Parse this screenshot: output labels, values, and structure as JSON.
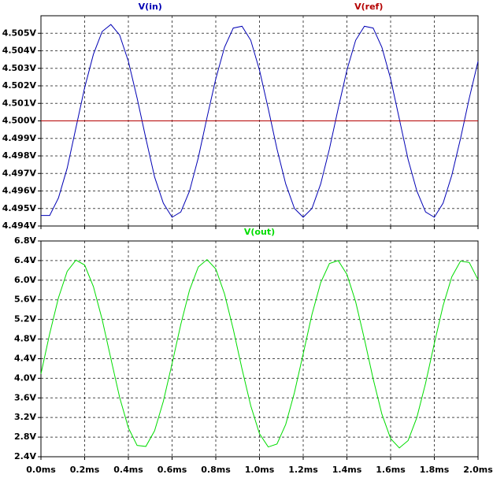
{
  "chart_data": [
    {
      "type": "line",
      "x": [
        0,
        0.04,
        0.08,
        0.12,
        0.16,
        0.2,
        0.24,
        0.28,
        0.32,
        0.36,
        0.4,
        0.44,
        0.48,
        0.52,
        0.56,
        0.6,
        0.64,
        0.68,
        0.72,
        0.76,
        0.8,
        0.84,
        0.88,
        0.92,
        0.96,
        1.0,
        1.04,
        1.08,
        1.12,
        1.16,
        1.2,
        1.24,
        1.28,
        1.32,
        1.36,
        1.4,
        1.44,
        1.48,
        1.52,
        1.56,
        1.6,
        1.64,
        1.68,
        1.72,
        1.76,
        1.8,
        1.84,
        1.88,
        1.92,
        1.96,
        2.0
      ],
      "series": [
        {
          "name": "V(in)",
          "color": "#0000b4",
          "values": [
            4.4946,
            4.4946,
            4.4956,
            4.4973,
            4.4996,
            4.5019,
            4.5038,
            4.5051,
            4.5055,
            4.5049,
            4.5034,
            4.5013,
            4.499,
            4.4968,
            4.4953,
            4.4945,
            4.4948,
            4.496,
            4.4979,
            4.5002,
            4.5024,
            4.5042,
            4.5053,
            4.5054,
            4.5046,
            4.5029,
            4.5007,
            4.4984,
            4.4964,
            4.495,
            4.4945,
            4.495,
            4.4964,
            4.4984,
            4.5007,
            4.5029,
            4.5046,
            4.5054,
            4.5053,
            4.5042,
            4.5024,
            4.5001,
            4.4978,
            4.496,
            4.4948,
            4.4945,
            4.4953,
            4.4969,
            4.499,
            4.5013,
            4.5034
          ]
        },
        {
          "name": "V(ref)",
          "color": "#b40000",
          "values": [
            4.5,
            4.5,
            4.5,
            4.5,
            4.5,
            4.5,
            4.5,
            4.5,
            4.5,
            4.5,
            4.5,
            4.5,
            4.5,
            4.5,
            4.5,
            4.5,
            4.5,
            4.5,
            4.5,
            4.5,
            4.5,
            4.5,
            4.5,
            4.5,
            4.5,
            4.5,
            4.5,
            4.5,
            4.5,
            4.5,
            4.5,
            4.5,
            4.5,
            4.5,
            4.5,
            4.5,
            4.5,
            4.5,
            4.5,
            4.5,
            4.5,
            4.5,
            4.5,
            4.5,
            4.5,
            4.5,
            4.5,
            4.5,
            4.5,
            4.5,
            4.5
          ]
        }
      ],
      "xlim": [
        0,
        2.0
      ],
      "xticks": [
        0,
        0.2,
        0.4,
        0.6,
        0.8,
        1.0,
        1.2,
        1.4,
        1.6,
        1.8,
        2.0
      ],
      "ylim": [
        4.494,
        4.506
      ],
      "yticks": [
        {
          "value": 4.494,
          "label": "4.494V"
        },
        {
          "value": 4.495,
          "label": "4.495V"
        },
        {
          "value": 4.496,
          "label": "4.496V"
        },
        {
          "value": 4.497,
          "label": "4.497V"
        },
        {
          "value": 4.498,
          "label": "4.498V"
        },
        {
          "value": 4.499,
          "label": "4.499V"
        },
        {
          "value": 4.5,
          "label": "4.500V"
        },
        {
          "value": 4.501,
          "label": "4.501V"
        },
        {
          "value": 4.502,
          "label": "4.502V"
        },
        {
          "value": 4.503,
          "label": "4.503V"
        },
        {
          "value": 4.504,
          "label": "4.504V"
        },
        {
          "value": 4.505,
          "label": "4.505V"
        }
      ],
      "grid": true
    },
    {
      "type": "line",
      "x": [
        0,
        0.04,
        0.08,
        0.12,
        0.16,
        0.2,
        0.24,
        0.28,
        0.32,
        0.36,
        0.4,
        0.44,
        0.48,
        0.52,
        0.56,
        0.6,
        0.64,
        0.68,
        0.72,
        0.76,
        0.8,
        0.84,
        0.88,
        0.92,
        0.96,
        1.0,
        1.04,
        1.08,
        1.12,
        1.16,
        1.2,
        1.24,
        1.28,
        1.32,
        1.36,
        1.4,
        1.44,
        1.48,
        1.52,
        1.56,
        1.6,
        1.64,
        1.68,
        1.72,
        1.76,
        1.8,
        1.84,
        1.88,
        1.92,
        1.96,
        2.0
      ],
      "series": [
        {
          "name": "V(out)",
          "color": "#00dc00",
          "values": [
            4.09,
            4.91,
            5.64,
            6.18,
            6.41,
            6.31,
            5.87,
            5.2,
            4.4,
            3.61,
            2.99,
            2.63,
            2.61,
            2.93,
            3.53,
            4.3,
            5.1,
            5.8,
            6.27,
            6.42,
            6.23,
            5.72,
            5.0,
            4.19,
            3.44,
            2.87,
            2.6,
            2.66,
            3.06,
            3.71,
            4.5,
            5.3,
            5.95,
            6.34,
            6.4,
            6.12,
            5.56,
            4.8,
            3.99,
            3.27,
            2.77,
            2.58,
            2.73,
            3.2,
            3.9,
            4.71,
            5.48,
            6.07,
            6.39,
            6.36,
            6.01
          ]
        }
      ],
      "xlim": [
        0,
        2.0
      ],
      "xticks": [
        {
          "value": 0,
          "label": "0.0ms"
        },
        {
          "value": 0.2,
          "label": "0.2ms"
        },
        {
          "value": 0.4,
          "label": "0.4ms"
        },
        {
          "value": 0.6,
          "label": "0.6ms"
        },
        {
          "value": 0.8,
          "label": "0.8ms"
        },
        {
          "value": 1.0,
          "label": "1.0ms"
        },
        {
          "value": 1.2,
          "label": "1.2ms"
        },
        {
          "value": 1.4,
          "label": "1.4ms"
        },
        {
          "value": 1.6,
          "label": "1.6ms"
        },
        {
          "value": 1.8,
          "label": "1.8ms"
        },
        {
          "value": 2.0,
          "label": "2.0ms"
        }
      ],
      "ylim": [
        2.4,
        6.8
      ],
      "yticks": [
        {
          "value": 2.4,
          "label": "2.4V"
        },
        {
          "value": 2.8,
          "label": "2.8V"
        },
        {
          "value": 3.2,
          "label": "3.2V"
        },
        {
          "value": 3.6,
          "label": "3.6V"
        },
        {
          "value": 4.0,
          "label": "4.0V"
        },
        {
          "value": 4.4,
          "label": "4.4V"
        },
        {
          "value": 4.8,
          "label": "4.8V"
        },
        {
          "value": 5.2,
          "label": "5.2V"
        },
        {
          "value": 5.6,
          "label": "5.6V"
        },
        {
          "value": 6.0,
          "label": "6.0V"
        },
        {
          "value": 6.4,
          "label": "6.4V"
        },
        {
          "value": 6.8,
          "label": "6.8V"
        }
      ],
      "grid": true
    }
  ]
}
